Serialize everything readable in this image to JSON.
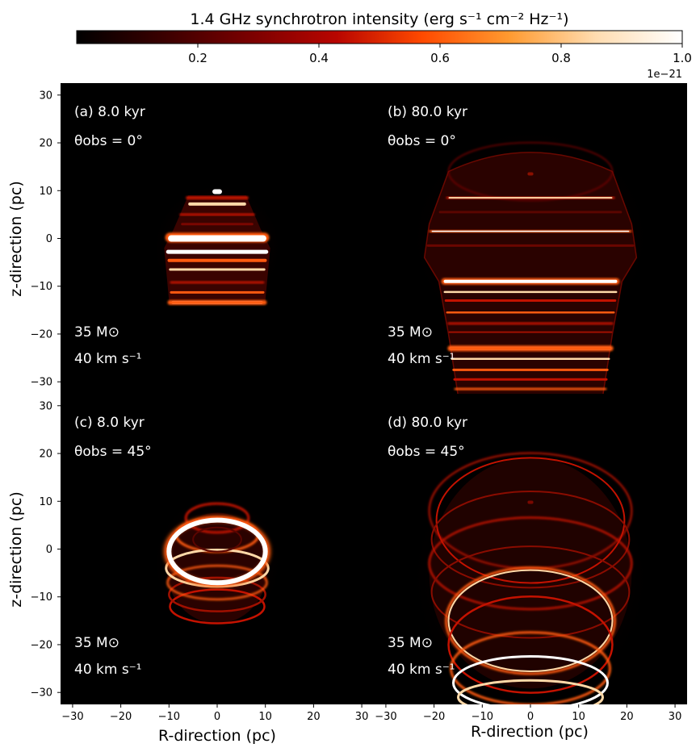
{
  "colorbar": {
    "title": "1.4 GHz synchrotron intensity (erg s⁻¹ cm⁻² Hz⁻¹)",
    "ticks": [
      "0.2",
      "0.4",
      "0.6",
      "0.8",
      "1.0"
    ],
    "tick_values": [
      0.2,
      0.4,
      0.6,
      0.8,
      1.0
    ],
    "range": [
      0.0,
      1.0
    ],
    "offset": "1e−21",
    "colormap": "gist_heat",
    "colors": [
      "#000000",
      "#3a0000",
      "#7a0000",
      "#b80500",
      "#ff4a00",
      "#ff9a30",
      "#ffdcb0",
      "#ffffff"
    ]
  },
  "axes": {
    "xlabel": "R-direction (pc)",
    "ylabel": "z-direction (pc)",
    "xlim": [
      -32.5,
      32.5
    ],
    "ylim": [
      -32.5,
      32.5
    ],
    "xticks": [
      -30,
      -20,
      -10,
      0,
      10,
      20,
      30
    ],
    "yticks": [
      -30,
      -20,
      -10,
      0,
      10,
      20,
      30
    ]
  },
  "chart_data": [
    {
      "type": "heatmap",
      "panel": "(a)",
      "time_label": "(a) 8.0 kyr",
      "theta_label": "θobs = 0°",
      "mass_label": "35 M⊙",
      "velocity_label": "40 km s⁻¹",
      "age_kyr": 8.0,
      "theta_obs_deg": 0,
      "nebula_extent": {
        "R": [
          -11,
          11
        ],
        "z": [
          -15,
          10
        ]
      },
      "bright_rings_z": [
        9.5,
        7.5,
        5,
        0,
        -3,
        -5,
        -7,
        -9.5,
        -12,
        -13.5
      ]
    },
    {
      "type": "heatmap",
      "panel": "(b)",
      "time_label": "(b) 80.0 kyr",
      "theta_label": "θobs = 0°",
      "mass_label": "35 M⊙",
      "velocity_label": "40 km s⁻¹",
      "age_kyr": 80.0,
      "theta_obs_deg": 0,
      "nebula_extent": {
        "R": [
          -22,
          22
        ],
        "z": [
          -33,
          20
        ]
      },
      "bright_rings_z": [
        8.5,
        1.5,
        -9,
        -11,
        -13,
        -15.5,
        -18,
        -23,
        -25,
        -28,
        -31
      ]
    },
    {
      "type": "heatmap",
      "panel": "(c)",
      "time_label": "(c) 8.0 kyr",
      "theta_label": "θobs = 45°",
      "mass_label": "35 M⊙",
      "velocity_label": "40 km s⁻¹",
      "age_kyr": 8.0,
      "theta_obs_deg": 45,
      "nebula_extent": {
        "R": [
          -11,
          11
        ],
        "z": [
          -16,
          11
        ]
      },
      "bright_rings_z": [
        7,
        3,
        -1,
        -4,
        -7,
        -10,
        -13
      ]
    },
    {
      "type": "heatmap",
      "panel": "(d)",
      "time_label": "(d) 80.0 kyr",
      "theta_label": "θobs = 45°",
      "mass_label": "35 M⊙",
      "velocity_label": "40 km s⁻¹",
      "age_kyr": 80.0,
      "theta_obs_deg": 45,
      "nebula_extent": {
        "R": [
          -22,
          22
        ],
        "z": [
          -33,
          20
        ]
      },
      "bright_rings_z": [
        14,
        9,
        2,
        -4,
        -10,
        -16,
        -22,
        -27,
        -31
      ]
    }
  ]
}
